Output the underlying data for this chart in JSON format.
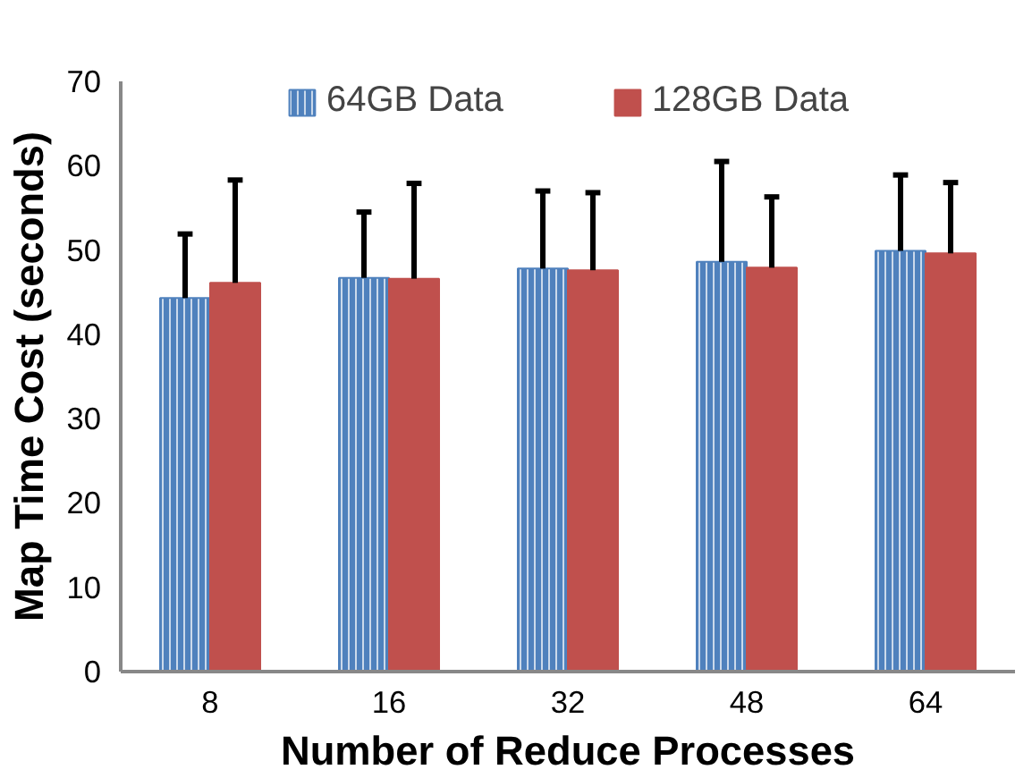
{
  "chart_data": {
    "type": "bar",
    "xlabel": "Number of Reduce Processes",
    "ylabel": "Map Time Cost (seconds)",
    "categories": [
      "8",
      "16",
      "32",
      "48",
      "64"
    ],
    "series": [
      {
        "name": "64GB Data",
        "color": "#4f81bd",
        "values": [
          44.3,
          46.7,
          47.8,
          48.6,
          49.9
        ],
        "errors": [
          [
            44.3,
            51.9
          ],
          [
            46.7,
            54.5
          ],
          [
            47.8,
            57.0
          ],
          [
            48.6,
            60.5
          ],
          [
            49.9,
            58.9
          ]
        ]
      },
      {
        "name": "128GB Data",
        "color": "#c0504d",
        "values": [
          46.1,
          46.6,
          47.6,
          47.9,
          49.6
        ],
        "errors": [
          [
            46.1,
            58.3
          ],
          [
            46.6,
            57.9
          ],
          [
            47.6,
            56.8
          ],
          [
            47.9,
            56.3
          ],
          [
            49.6,
            58.0
          ]
        ]
      }
    ],
    "ylim": [
      0,
      70
    ],
    "yticks": [
      0,
      10,
      20,
      30,
      40,
      50,
      60,
      70
    ],
    "grid": false,
    "legend": "top"
  }
}
